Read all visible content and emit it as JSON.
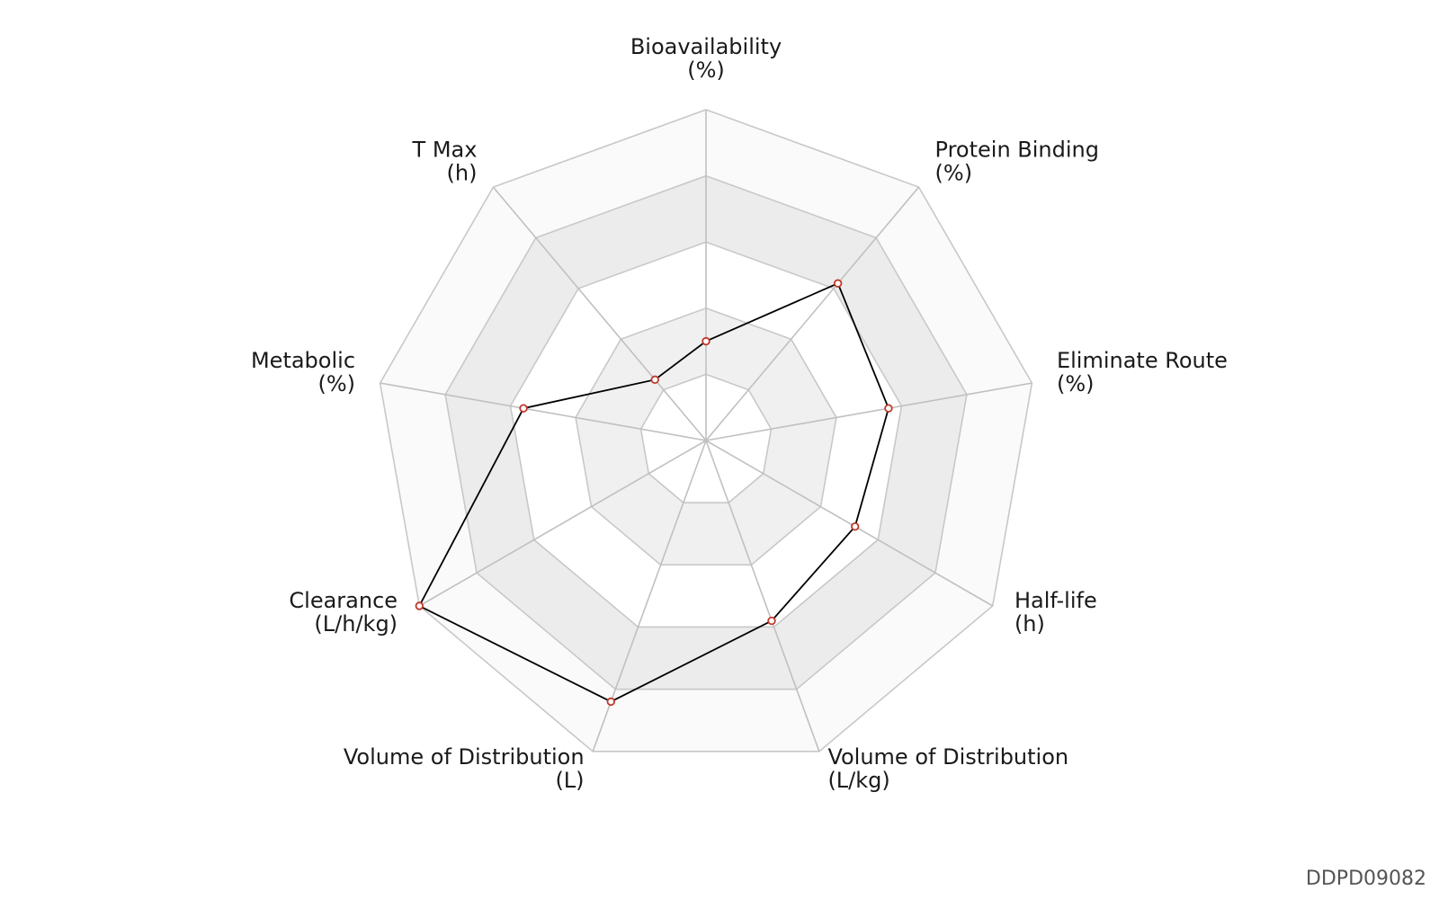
{
  "chart_data": {
    "type": "radar",
    "axes": [
      {
        "name": "Bioavailability",
        "unit": "(%)"
      },
      {
        "name": "Protein Binding",
        "unit": "(%)"
      },
      {
        "name": "Eliminate Route",
        "unit": "(%)"
      },
      {
        "name": "Half-life",
        "unit": "(h)"
      },
      {
        "name": "Volume of Distribution",
        "unit": "(L/kg)"
      },
      {
        "name": "Volume of Distribution",
        "unit": "(L)"
      },
      {
        "name": "Clearance",
        "unit": "(L/h/kg)"
      },
      {
        "name": "Metabolic",
        "unit": "(%)"
      },
      {
        "name": "T Max",
        "unit": "(h)"
      }
    ],
    "levels": 5,
    "range": [
      0,
      5
    ],
    "values": [
      1.5,
      3.1,
      2.8,
      2.6,
      2.9,
      4.2,
      5.0,
      2.8,
      1.2
    ],
    "grid": true,
    "band_colors": [
      "#ffffff",
      "#f0f0f0",
      "#ffffff",
      "#ececec",
      "#fafafa"
    ],
    "line_color": "#000000",
    "marker_color": "#c0392b"
  },
  "watermark": "DDPD09082"
}
